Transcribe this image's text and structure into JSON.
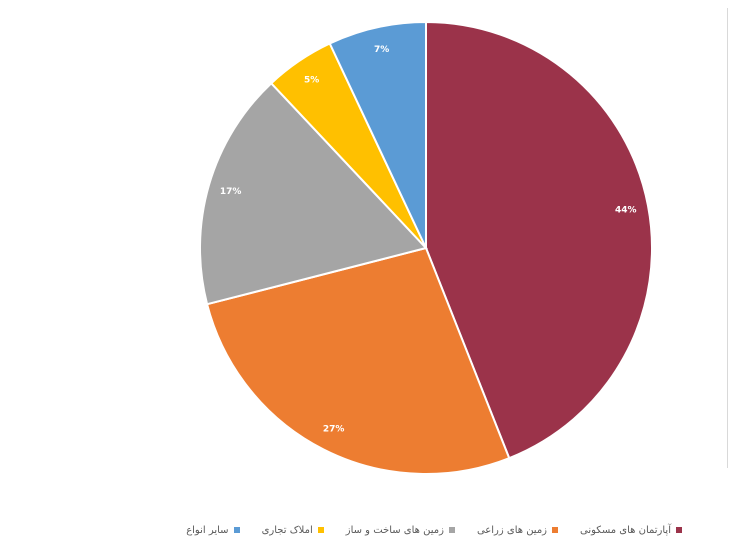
{
  "chart_data": {
    "type": "pie",
    "title": "",
    "slices": [
      {
        "label": "آپارتمان های مسکونی",
        "value": 44,
        "display": "44%",
        "color": "#9b334a"
      },
      {
        "label": "زمین های زراعی",
        "value": 27,
        "display": "27%",
        "color": "#ed7d31"
      },
      {
        "label": "زمین های ساخت و ساز",
        "value": 17,
        "display": "17%",
        "color": "#a5a5a5"
      },
      {
        "label": "املاک تجاری",
        "value": 5,
        "display": "5%",
        "color": "#ffc000"
      },
      {
        "label": "سایر انواع",
        "value": 7,
        "display": "7%",
        "color": "#5b9bd5"
      }
    ],
    "legend_position": "bottom",
    "data_label_color": "#ffffff"
  }
}
